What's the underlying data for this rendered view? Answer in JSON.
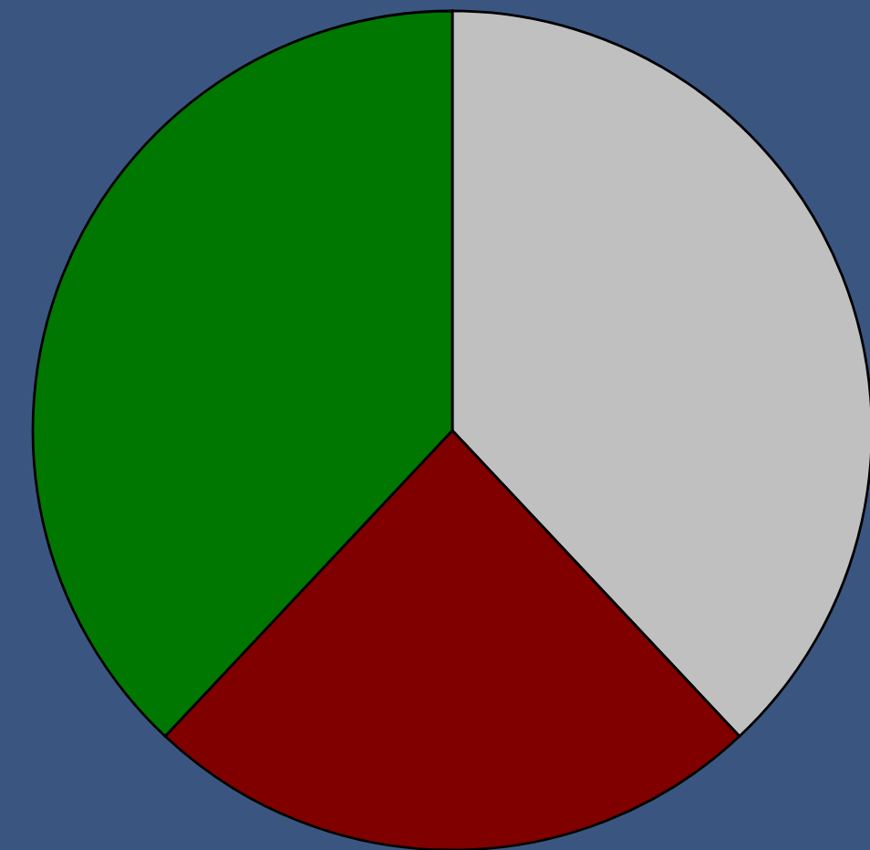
{
  "chart_data": {
    "type": "pie",
    "categories": [
      null,
      null,
      null
    ],
    "values": [
      38,
      24,
      38
    ],
    "colors": [
      "#c0c0c0",
      "#800000",
      "#007700"
    ]
  }
}
